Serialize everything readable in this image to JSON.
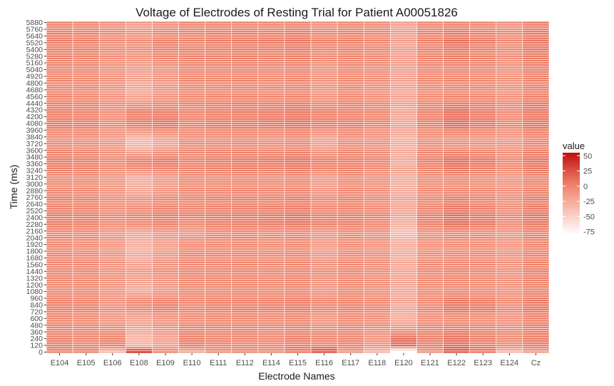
{
  "chart_data": {
    "type": "heatmap",
    "title": "Voltage of Electrodes of Resting Trial for Patient A00051826",
    "xlabel": "Electrode Names",
    "ylabel": "Time (ms)",
    "legend_title": "value",
    "legend_position": "right",
    "grid": true,
    "color_scale": {
      "low": "#ffffff",
      "high": "#c0100f",
      "limits": [
        -80,
        55
      ]
    },
    "legend_ticks": [
      50,
      25,
      0,
      -25,
      -50,
      -75
    ],
    "x_categories": [
      "E104",
      "E105",
      "E106",
      "E108",
      "E109",
      "E110",
      "E111",
      "E112",
      "E114",
      "E115",
      "E116",
      "E117",
      "E118",
      "E120",
      "E121",
      "E122",
      "E123",
      "E124",
      "Cz"
    ],
    "y_start_ms": 0,
    "y_step_ms": 40,
    "y_count": 148,
    "y_tick_labels": [
      "0",
      "120",
      "240",
      "360",
      "480",
      "600",
      "720",
      "840",
      "960",
      "1080",
      "1200",
      "1320",
      "1440",
      "1560",
      "1680",
      "1800",
      "1920",
      "2040",
      "2160",
      "2280",
      "2400",
      "2520",
      "2640",
      "2760",
      "2880",
      "3000",
      "3120",
      "3240",
      "3360",
      "3480",
      "3600",
      "3720",
      "3840",
      "3960",
      "4080",
      "4200",
      "4320",
      "4440",
      "4560",
      "4680",
      "4800",
      "4920",
      "5040",
      "5160",
      "5280",
      "5400",
      "5520",
      "5640",
      "5760",
      "5880"
    ],
    "baseline_by_electrode": [
      2,
      1,
      -5,
      -12,
      -5,
      2,
      2,
      3,
      1,
      3,
      -5,
      1,
      -2,
      -15,
      1,
      3,
      1,
      -5,
      5
    ],
    "row_profile": [
      {
        "t": 0,
        "d": [
          0,
          0,
          -30,
          50,
          5,
          -25,
          -8,
          -5,
          -5,
          5,
          30,
          -10,
          -30,
          -80,
          -10,
          18,
          8,
          -30,
          -20
        ]
      },
      {
        "t": 120,
        "d": [
          3,
          2,
          10,
          -15,
          -10,
          5,
          2,
          0,
          0,
          3,
          8,
          3,
          -5,
          30,
          5,
          10,
          5,
          5,
          3
        ]
      },
      {
        "t": 240,
        "d": [
          3,
          2,
          10,
          -15,
          -10,
          5,
          2,
          0,
          0,
          3,
          8,
          3,
          -5,
          30,
          5,
          10,
          5,
          5,
          3
        ]
      },
      {
        "t": 360,
        "d": [
          0,
          0,
          5,
          -10,
          -5,
          2,
          0,
          0,
          0,
          0,
          5,
          0,
          -3,
          15,
          2,
          5,
          3,
          3,
          0
        ]
      },
      {
        "t": 480,
        "d": [
          0,
          0,
          0,
          -5,
          -2,
          0,
          0,
          0,
          0,
          0,
          0,
          0,
          0,
          0,
          0,
          0,
          0,
          0,
          0
        ]
      },
      {
        "t": 600,
        "d": [
          -3,
          -3,
          -5,
          -5,
          -3,
          -5,
          -3,
          -3,
          -3,
          -3,
          -5,
          -3,
          -3,
          -8,
          -5,
          -5,
          -5,
          -3,
          -3
        ]
      },
      {
        "t": 720,
        "d": [
          2,
          2,
          0,
          8,
          8,
          0,
          2,
          2,
          3,
          3,
          5,
          2,
          2,
          -5,
          0,
          5,
          5,
          3,
          2
        ]
      },
      {
        "t": 840,
        "d": [
          3,
          3,
          0,
          15,
          12,
          0,
          3,
          3,
          5,
          5,
          8,
          3,
          3,
          -5,
          0,
          8,
          8,
          3,
          3
        ]
      },
      {
        "t": 960,
        "d": [
          2,
          2,
          0,
          10,
          8,
          0,
          2,
          2,
          3,
          3,
          5,
          2,
          2,
          -3,
          0,
          5,
          5,
          3,
          2
        ]
      },
      {
        "t": 1080,
        "d": [
          -2,
          -2,
          -3,
          -8,
          -5,
          -3,
          -2,
          -2,
          -2,
          -2,
          -3,
          -2,
          -2,
          -5,
          -3,
          -3,
          -3,
          -2,
          -2
        ]
      },
      {
        "t": 1200,
        "d": [
          -2,
          -2,
          -3,
          -8,
          -5,
          -3,
          -2,
          -2,
          -2,
          -2,
          -3,
          -2,
          -2,
          -5,
          -3,
          -3,
          -3,
          -2,
          -2
        ]
      },
      {
        "t": 1440,
        "d": [
          0,
          0,
          0,
          3,
          2,
          0,
          0,
          0,
          0,
          0,
          2,
          0,
          0,
          -3,
          0,
          0,
          0,
          0,
          0
        ]
      },
      {
        "t": 1680,
        "d": [
          -3,
          -3,
          -3,
          -10,
          -5,
          -3,
          -3,
          -3,
          -3,
          -3,
          -5,
          -3,
          -3,
          -8,
          -5,
          -5,
          -3,
          -3,
          -3
        ]
      },
      {
        "t": 1920,
        "d": [
          -3,
          -3,
          -3,
          -12,
          -8,
          -3,
          -3,
          -3,
          -3,
          -3,
          -5,
          -3,
          -3,
          -8,
          -5,
          -5,
          -3,
          -3,
          -3
        ]
      },
      {
        "t": 2160,
        "d": [
          -2,
          -2,
          -5,
          -5,
          -3,
          -12,
          -3,
          -3,
          -3,
          -3,
          -3,
          -3,
          -3,
          -20,
          -5,
          -3,
          -3,
          -3,
          -3
        ]
      },
      {
        "t": 2280,
        "d": [
          5,
          5,
          5,
          15,
          12,
          0,
          5,
          5,
          8,
          8,
          12,
          5,
          5,
          -10,
          5,
          12,
          10,
          5,
          5
        ]
      },
      {
        "t": 2400,
        "d": [
          5,
          5,
          5,
          15,
          12,
          2,
          5,
          5,
          8,
          8,
          10,
          5,
          5,
          -5,
          5,
          10,
          8,
          5,
          5
        ]
      },
      {
        "t": 2520,
        "d": [
          3,
          3,
          3,
          12,
          10,
          2,
          3,
          3,
          5,
          5,
          8,
          3,
          3,
          -5,
          3,
          8,
          5,
          3,
          3
        ]
      },
      {
        "t": 2760,
        "d": [
          2,
          2,
          0,
          5,
          5,
          0,
          2,
          2,
          3,
          3,
          3,
          2,
          0,
          -3,
          0,
          3,
          3,
          2,
          2
        ]
      },
      {
        "t": 2880,
        "d": [
          -2,
          -2,
          -3,
          -10,
          -5,
          -3,
          -2,
          -2,
          -2,
          -2,
          -5,
          -2,
          -3,
          -10,
          -3,
          -3,
          -3,
          -2,
          -2
        ]
      },
      {
        "t": 3120,
        "d": [
          -3,
          -3,
          -3,
          -10,
          -5,
          -3,
          -3,
          -3,
          -3,
          -3,
          -5,
          -3,
          -3,
          -8,
          -3,
          -3,
          -3,
          -3,
          -3
        ]
      },
      {
        "t": 3240,
        "d": [
          2,
          2,
          0,
          8,
          5,
          0,
          2,
          2,
          3,
          3,
          5,
          2,
          0,
          -3,
          0,
          5,
          3,
          2,
          2
        ]
      },
      {
        "t": 3360,
        "d": [
          5,
          5,
          5,
          20,
          15,
          2,
          5,
          5,
          8,
          8,
          12,
          5,
          5,
          -8,
          5,
          12,
          10,
          5,
          5
        ]
      },
      {
        "t": 3480,
        "d": [
          5,
          5,
          5,
          15,
          12,
          2,
          5,
          5,
          8,
          8,
          10,
          5,
          5,
          -5,
          5,
          10,
          8,
          5,
          5
        ]
      },
      {
        "t": 3600,
        "d": [
          -2,
          -2,
          -3,
          -10,
          -5,
          -3,
          -2,
          -2,
          -2,
          -2,
          -5,
          -2,
          -3,
          -8,
          -3,
          -3,
          -3,
          -2,
          -2
        ]
      },
      {
        "t": 3720,
        "d": [
          -5,
          -5,
          -5,
          -20,
          -15,
          -5,
          -5,
          -5,
          -5,
          -5,
          -12,
          -5,
          -5,
          -10,
          -5,
          -8,
          -8,
          -5,
          -5
        ]
      },
      {
        "t": 3840,
        "d": [
          -3,
          -3,
          -3,
          -12,
          -8,
          -3,
          -3,
          -3,
          -3,
          -3,
          -8,
          -3,
          -3,
          -8,
          -3,
          -5,
          -5,
          -3,
          -3
        ]
      },
      {
        "t": 3960,
        "d": [
          2,
          2,
          0,
          10,
          8,
          0,
          2,
          2,
          3,
          3,
          5,
          2,
          0,
          -3,
          0,
          5,
          3,
          2,
          2
        ]
      },
      {
        "t": 4080,
        "d": [
          5,
          5,
          3,
          20,
          15,
          2,
          5,
          5,
          8,
          8,
          12,
          5,
          5,
          -3,
          5,
          12,
          8,
          5,
          5
        ]
      },
      {
        "t": 4200,
        "d": [
          5,
          5,
          3,
          20,
          15,
          2,
          5,
          5,
          8,
          8,
          12,
          5,
          5,
          -3,
          5,
          12,
          8,
          5,
          5
        ]
      },
      {
        "t": 4320,
        "d": [
          5,
          5,
          3,
          18,
          12,
          2,
          5,
          5,
          8,
          8,
          12,
          5,
          5,
          -3,
          5,
          12,
          8,
          5,
          5
        ]
      },
      {
        "t": 4440,
        "d": [
          2,
          2,
          0,
          5,
          3,
          0,
          2,
          2,
          3,
          3,
          3,
          2,
          0,
          -3,
          0,
          3,
          3,
          2,
          2
        ]
      },
      {
        "t": 4560,
        "d": [
          0,
          0,
          -2,
          -5,
          -2,
          -2,
          0,
          0,
          0,
          0,
          -2,
          0,
          -2,
          -3,
          -2,
          0,
          0,
          0,
          0
        ]
      },
      {
        "t": 4800,
        "d": [
          -2,
          -2,
          -2,
          -8,
          -5,
          -2,
          -2,
          -2,
          -2,
          -2,
          -3,
          -2,
          -2,
          -3,
          -2,
          -2,
          -2,
          -2,
          -2
        ]
      },
      {
        "t": 5040,
        "d": [
          0,
          0,
          0,
          0,
          0,
          0,
          0,
          0,
          0,
          0,
          0,
          0,
          0,
          0,
          0,
          0,
          0,
          0,
          0
        ]
      },
      {
        "t": 5400,
        "d": [
          2,
          2,
          2,
          8,
          8,
          2,
          2,
          2,
          3,
          3,
          5,
          2,
          2,
          0,
          2,
          5,
          3,
          2,
          2
        ]
      },
      {
        "t": 5520,
        "d": [
          5,
          5,
          3,
          10,
          12,
          2,
          5,
          5,
          8,
          8,
          12,
          5,
          5,
          0,
          5,
          12,
          8,
          5,
          5
        ]
      },
      {
        "t": 5640,
        "d": [
          2,
          2,
          2,
          5,
          5,
          0,
          2,
          2,
          3,
          3,
          5,
          2,
          2,
          0,
          2,
          5,
          3,
          2,
          2
        ]
      },
      {
        "t": 5880,
        "d": [
          0,
          0,
          0,
          0,
          0,
          0,
          0,
          0,
          0,
          0,
          0,
          0,
          0,
          0,
          0,
          0,
          0,
          0,
          0
        ]
      }
    ]
  }
}
